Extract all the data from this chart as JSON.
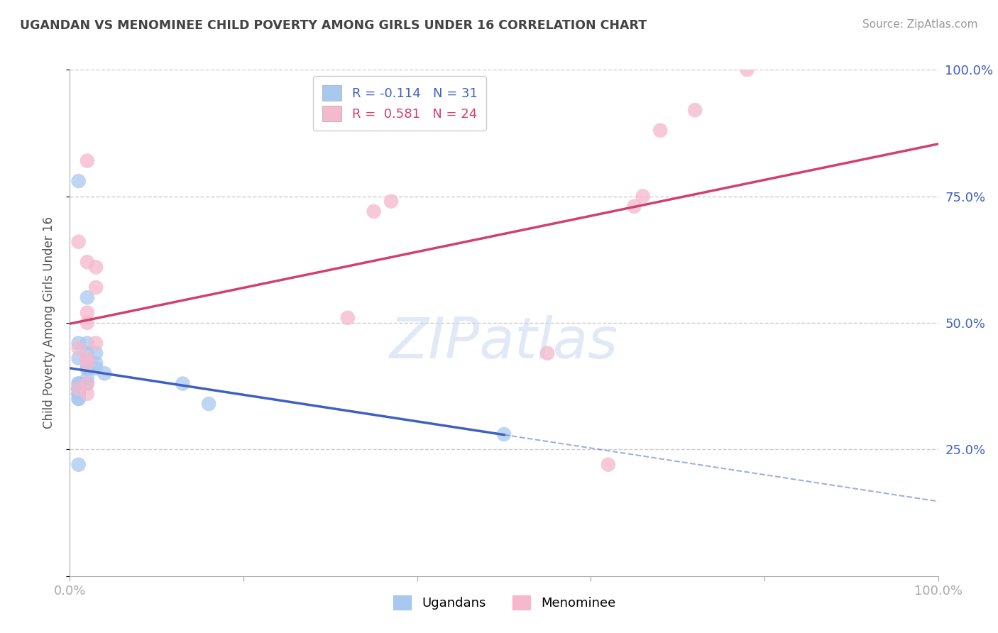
{
  "title": "UGANDAN VS MENOMINEE CHILD POVERTY AMONG GIRLS UNDER 16 CORRELATION CHART",
  "source": "Source: ZipAtlas.com",
  "ylabel": "Child Poverty Among Girls Under 16",
  "ugandan_R": -0.114,
  "ugandan_N": 31,
  "menominee_R": 0.581,
  "menominee_N": 24,
  "ugandan_color": "#a8c8f0",
  "menominee_color": "#f5b8cc",
  "ugandan_line_color": "#4060c0",
  "menominee_line_color": "#d04070",
  "ugandan_x": [
    0.02,
    0.01,
    0.01,
    0.02,
    0.03,
    0.01,
    0.01,
    0.01,
    0.01,
    0.01,
    0.01,
    0.02,
    0.02,
    0.01,
    0.01,
    0.02,
    0.03,
    0.03,
    0.04,
    0.01,
    0.01,
    0.01,
    0.01,
    0.13,
    0.02,
    0.02,
    0.16,
    0.01,
    0.02,
    0.5,
    0.01
  ],
  "ugandan_y": [
    0.55,
    0.46,
    0.37,
    0.46,
    0.44,
    0.38,
    0.37,
    0.36,
    0.35,
    0.37,
    0.43,
    0.44,
    0.39,
    0.37,
    0.36,
    0.41,
    0.41,
    0.42,
    0.4,
    0.35,
    0.36,
    0.37,
    0.38,
    0.38,
    0.41,
    0.41,
    0.34,
    0.78,
    0.38,
    0.28,
    0.22
  ],
  "menominee_x": [
    0.02,
    0.01,
    0.02,
    0.02,
    0.03,
    0.02,
    0.03,
    0.01,
    0.02,
    0.02,
    0.02,
    0.01,
    0.02,
    0.03,
    0.32,
    0.35,
    0.37,
    0.55,
    0.62,
    0.65,
    0.66,
    0.68,
    0.72,
    0.78
  ],
  "menominee_y": [
    0.82,
    0.66,
    0.62,
    0.5,
    0.61,
    0.52,
    0.46,
    0.45,
    0.42,
    0.43,
    0.38,
    0.37,
    0.36,
    0.57,
    0.51,
    0.72,
    0.74,
    0.44,
    0.22,
    0.73,
    0.75,
    0.88,
    0.92,
    1.0
  ],
  "xlim": [
    0.0,
    1.0
  ],
  "ylim": [
    0.0,
    1.0
  ],
  "background_color": "#FFFFFF",
  "grid_color": "#CCCCCC",
  "title_color": "#444444",
  "axis_label_color": "#4060c0",
  "right_tick_color": "#4060c0"
}
